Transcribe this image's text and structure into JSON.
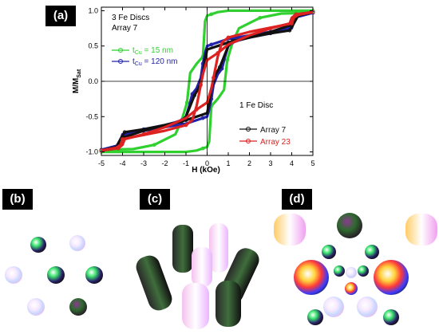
{
  "panels": {
    "a": "(a)",
    "b": "(b)",
    "c": "(c)",
    "d": "(d)"
  },
  "chart_data": {
    "type": "line",
    "xlabel": "H (kOe)",
    "ylabel_main": "M/M",
    "ylabel_sub": "Sat",
    "xlim": [
      -5,
      5
    ],
    "ylim": [
      -1.05,
      1.05
    ],
    "xticks": [
      -5,
      -4,
      -3,
      -2,
      -1,
      0,
      1,
      2,
      3,
      4,
      5
    ],
    "yticks": [
      -1.0,
      -0.5,
      0.0,
      0.5,
      1.0
    ],
    "annotation_top": {
      "line1": "3 Fe Discs",
      "line2": "Array 7"
    },
    "annotation_bottom": {
      "line1": "1 Fe Disc"
    },
    "legend_top": [
      {
        "prefix": "t",
        "sub": "Cu",
        "suffix": " = 15 nm",
        "color": "#2fd02f"
      },
      {
        "prefix": "t",
        "sub": "Cu",
        "suffix": " = 120 nm",
        "color": "#2222aa"
      }
    ],
    "legend_bottom": [
      {
        "label": "Array 7",
        "color": "#111111"
      },
      {
        "label": "Array 23",
        "color": "#dd2222"
      }
    ],
    "series": [
      {
        "name": "t_Cu = 15 nm",
        "color": "#2fd02f",
        "descending": [
          [
            5,
            1
          ],
          [
            1,
            1
          ],
          [
            0.5,
            0.98
          ],
          [
            0.2,
            0.95
          ],
          [
            0,
            0.93
          ],
          [
            -0.1,
            0.85
          ],
          [
            -0.2,
            0.35
          ],
          [
            -0.5,
            0.25
          ],
          [
            -0.8,
            0.12
          ],
          [
            -0.95,
            -0.3
          ],
          [
            -1.2,
            -0.55
          ],
          [
            -1.5,
            -0.75
          ],
          [
            -2.5,
            -0.9
          ],
          [
            -3.5,
            -0.96
          ],
          [
            -5,
            -0.97
          ]
        ],
        "ascending": [
          [
            -5,
            -1
          ],
          [
            -1,
            -1
          ],
          [
            -0.5,
            -0.98
          ],
          [
            -0.2,
            -0.95
          ],
          [
            0,
            -0.93
          ],
          [
            0.1,
            -0.85
          ],
          [
            0.2,
            -0.35
          ],
          [
            0.5,
            -0.25
          ],
          [
            0.8,
            -0.12
          ],
          [
            0.95,
            0.3
          ],
          [
            1.2,
            0.55
          ],
          [
            1.5,
            0.75
          ],
          [
            2.5,
            0.9
          ],
          [
            3.5,
            0.96
          ],
          [
            5,
            0.97
          ]
        ]
      },
      {
        "name": "t_Cu = 120 nm",
        "color": "#2222aa",
        "descending": [
          [
            5,
            0.97
          ],
          [
            4.2,
            0.92
          ],
          [
            4,
            0.75
          ],
          [
            3,
            0.68
          ],
          [
            2,
            0.62
          ],
          [
            1.5,
            0.58
          ],
          [
            1.2,
            0.55
          ],
          [
            1,
            0.5
          ],
          [
            0.85,
            0.35
          ],
          [
            0.7,
            0.18
          ],
          [
            0.5,
            0.1
          ],
          [
            0.3,
            -0.05
          ],
          [
            0.2,
            -0.25
          ],
          [
            0.1,
            -0.4
          ],
          [
            0,
            -0.5
          ],
          [
            -0.2,
            -0.52
          ],
          [
            -1,
            -0.6
          ],
          [
            -2,
            -0.65
          ],
          [
            -3,
            -0.7
          ],
          [
            -3.8,
            -0.75
          ],
          [
            -4,
            -0.78
          ],
          [
            -4.1,
            -0.9
          ],
          [
            -5,
            -0.97
          ]
        ],
        "ascending": [
          [
            -5,
            -0.97
          ],
          [
            -4.2,
            -0.92
          ],
          [
            -4,
            -0.75
          ],
          [
            -3,
            -0.68
          ],
          [
            -2,
            -0.62
          ],
          [
            -1.5,
            -0.58
          ],
          [
            -1.2,
            -0.55
          ],
          [
            -1,
            -0.5
          ],
          [
            -0.85,
            -0.35
          ],
          [
            -0.7,
            -0.18
          ],
          [
            -0.5,
            -0.1
          ],
          [
            -0.3,
            0.05
          ],
          [
            -0.2,
            0.25
          ],
          [
            -0.1,
            0.4
          ],
          [
            0,
            0.5
          ],
          [
            0.2,
            0.52
          ],
          [
            1,
            0.6
          ],
          [
            2,
            0.65
          ],
          [
            3,
            0.7
          ],
          [
            3.8,
            0.75
          ],
          [
            4,
            0.78
          ],
          [
            4.1,
            0.9
          ],
          [
            5,
            0.97
          ]
        ]
      },
      {
        "name": "Array 7",
        "color": "#111111",
        "descending": [
          [
            5,
            0.98
          ],
          [
            4.5,
            0.96
          ],
          [
            4.2,
            0.93
          ],
          [
            4,
            0.8
          ],
          [
            3,
            0.7
          ],
          [
            2,
            0.62
          ],
          [
            1.2,
            0.57
          ],
          [
            1,
            0.5
          ],
          [
            0.8,
            0.35
          ],
          [
            0.6,
            0.2
          ],
          [
            0.4,
            0.1
          ],
          [
            0.2,
            -0.1
          ],
          [
            0.1,
            -0.3
          ],
          [
            0,
            -0.45
          ],
          [
            -0.5,
            -0.5
          ],
          [
            -1,
            -0.55
          ],
          [
            -2,
            -0.62
          ],
          [
            -3,
            -0.68
          ],
          [
            -3.9,
            -0.72
          ],
          [
            -4.1,
            -0.82
          ],
          [
            -4.3,
            -0.93
          ],
          [
            -5,
            -0.98
          ]
        ],
        "ascending": [
          [
            -5,
            -0.98
          ],
          [
            -4.5,
            -0.96
          ],
          [
            -4.2,
            -0.93
          ],
          [
            -4,
            -0.8
          ],
          [
            -3,
            -0.7
          ],
          [
            -2,
            -0.62
          ],
          [
            -1.2,
            -0.57
          ],
          [
            -1,
            -0.5
          ],
          [
            -0.8,
            -0.35
          ],
          [
            -0.6,
            -0.2
          ],
          [
            -0.4,
            -0.1
          ],
          [
            -0.2,
            0.1
          ],
          [
            -0.1,
            0.3
          ],
          [
            0,
            0.45
          ],
          [
            0.5,
            0.5
          ],
          [
            1,
            0.55
          ],
          [
            2,
            0.62
          ],
          [
            3,
            0.68
          ],
          [
            3.9,
            0.72
          ],
          [
            4.1,
            0.82
          ],
          [
            4.3,
            0.93
          ],
          [
            5,
            0.98
          ]
        ]
      },
      {
        "name": "Array 23",
        "color": "#dd2222",
        "descending": [
          [
            5,
            0.98
          ],
          [
            4.3,
            0.94
          ],
          [
            4.1,
            0.9
          ],
          [
            4,
            0.82
          ],
          [
            3,
            0.76
          ],
          [
            2,
            0.7
          ],
          [
            1,
            0.62
          ],
          [
            0.7,
            0.55
          ],
          [
            0.5,
            0.35
          ],
          [
            0.3,
            0.05
          ],
          [
            0.2,
            -0.1
          ],
          [
            0,
            -0.3
          ],
          [
            -0.5,
            -0.4
          ],
          [
            -1,
            -0.52
          ],
          [
            -2,
            -0.65
          ],
          [
            -3,
            -0.75
          ],
          [
            -3.9,
            -0.82
          ],
          [
            -4,
            -0.9
          ],
          [
            -4.2,
            -0.95
          ],
          [
            -5,
            -0.98
          ]
        ],
        "ascending": [
          [
            -5,
            -0.98
          ],
          [
            -4.3,
            -0.94
          ],
          [
            -4.1,
            -0.9
          ],
          [
            -4,
            -0.82
          ],
          [
            -3,
            -0.76
          ],
          [
            -2,
            -0.7
          ],
          [
            -1,
            -0.62
          ],
          [
            -0.7,
            -0.55
          ],
          [
            -0.5,
            -0.35
          ],
          [
            -0.3,
            -0.05
          ],
          [
            -0.2,
            0.1
          ],
          [
            0,
            0.3
          ],
          [
            0.5,
            0.4
          ],
          [
            1,
            0.52
          ],
          [
            2,
            0.65
          ],
          [
            3,
            0.75
          ],
          [
            3.9,
            0.82
          ],
          [
            4,
            0.9
          ],
          [
            4.2,
            0.95
          ],
          [
            5,
            0.98
          ]
        ]
      }
    ],
    "grid": false
  }
}
